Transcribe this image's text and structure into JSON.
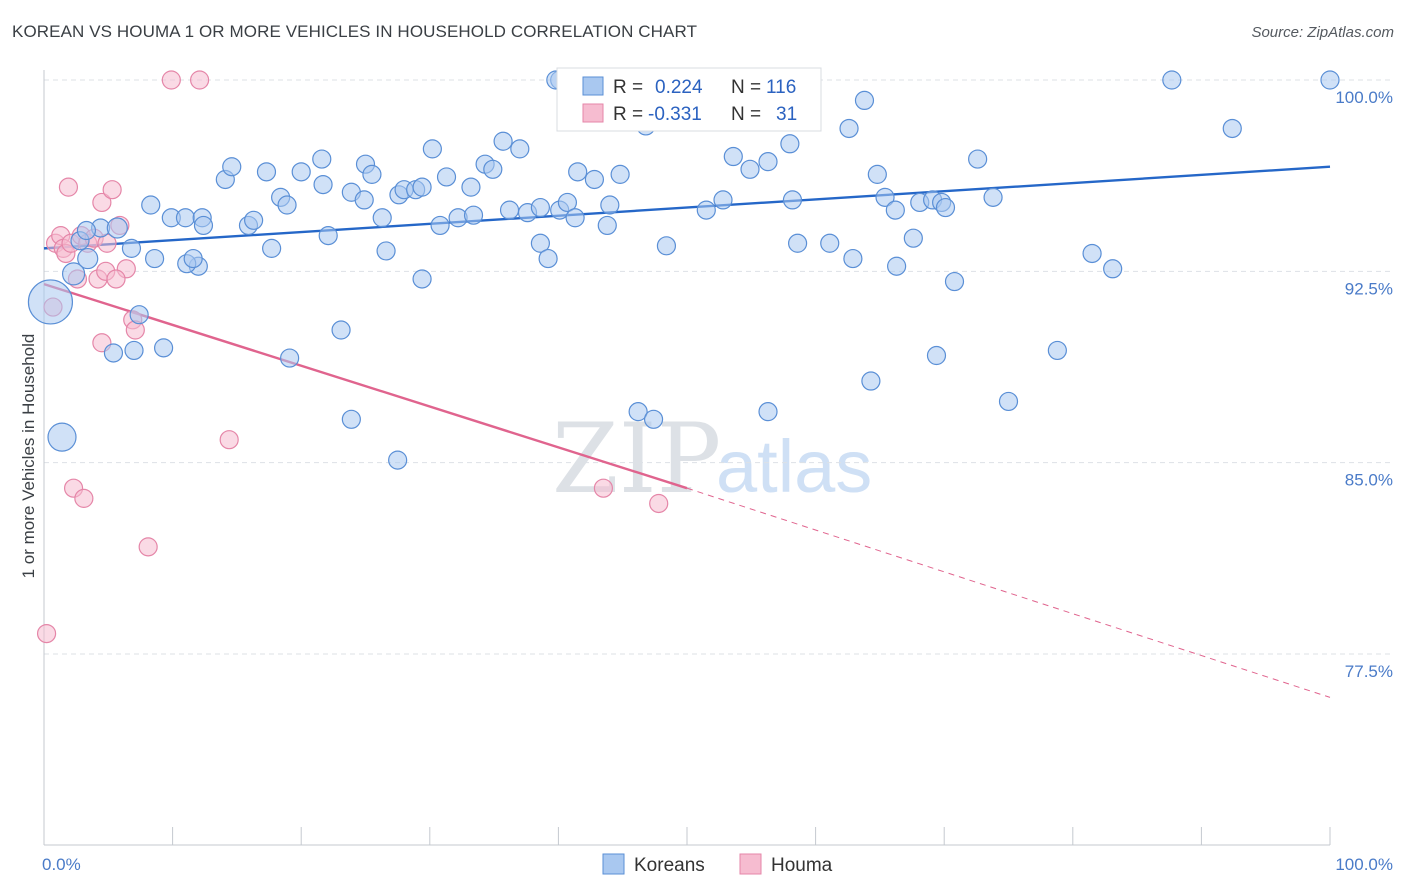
{
  "header": {
    "title": "KOREAN VS HOUMA 1 OR MORE VEHICLES IN HOUSEHOLD CORRELATION CHART",
    "source": "Source: ZipAtlas.com"
  },
  "watermark": {
    "zip": "ZIP",
    "atlas": "atlas"
  },
  "legend": {
    "rows": [
      {
        "r_label": "R =",
        "r_value": "0.224",
        "n_label": "N =",
        "n_value": "116"
      },
      {
        "r_label": "R =",
        "r_value": "-0.331",
        "n_label": "N =",
        "n_value": "31"
      }
    ]
  },
  "bottom_legend": [
    {
      "label": "Koreans"
    },
    {
      "label": "Houma"
    }
  ],
  "colors": {
    "koreans_fill": "#a9c8f0",
    "koreans_stroke": "#5a8fd6",
    "koreans_line": "#2567c8",
    "houma_fill": "#f6bcd0",
    "houma_stroke": "#e586a8",
    "houma_line": "#e0648e",
    "tick_label": "#4a7bc8",
    "grid": "#dde1e6"
  },
  "chart_data": {
    "type": "scatter",
    "title": "KOREAN VS HOUMA 1 OR MORE VEHICLES IN HOUSEHOLD CORRELATION CHART",
    "xlabel": "",
    "ylabel": "1 or more Vehicles in Household",
    "xlim": [
      0,
      100
    ],
    "ylim": [
      70.8,
      101.4
    ],
    "y_ticks": [
      {
        "value": 100.0,
        "label": "100.0%"
      },
      {
        "value": 92.5,
        "label": "92.5%"
      },
      {
        "value": 85.0,
        "label": "85.0%"
      },
      {
        "value": 77.5,
        "label": "77.5%"
      }
    ],
    "x_tick_labels": [
      {
        "value": 0,
        "label": "0.0%"
      },
      {
        "value": 100,
        "label": "100.0%"
      }
    ],
    "grid": true,
    "legend_position": "top-center",
    "series": [
      {
        "name": "Koreans",
        "r": 0.224,
        "n": 116,
        "trend": {
          "x": [
            0,
            100
          ],
          "y": [
            93.4,
            96.6
          ],
          "style": "solid"
        },
        "points": [
          [
            0.5,
            91.3,
            22
          ],
          [
            1.4,
            86.0,
            14
          ],
          [
            2.3,
            92.4,
            11
          ],
          [
            3.4,
            93.0,
            10
          ],
          [
            2.8,
            93.7,
            9
          ],
          [
            4.4,
            94.2,
            9
          ],
          [
            5.7,
            94.2,
            10
          ],
          [
            3.3,
            94.1,
            9
          ],
          [
            6.8,
            93.4,
            9
          ],
          [
            8.6,
            93.0,
            9
          ],
          [
            7.4,
            90.8,
            9
          ],
          [
            5.4,
            89.3,
            9
          ],
          [
            7.0,
            89.4,
            9
          ],
          [
            9.3,
            89.5,
            9
          ],
          [
            8.3,
            95.1,
            9
          ],
          [
            9.9,
            94.6,
            9
          ],
          [
            11.0,
            94.6,
            9
          ],
          [
            12.3,
            94.6,
            9
          ],
          [
            12.4,
            94.3,
            9
          ],
          [
            12.0,
            92.7,
            9
          ],
          [
            11.1,
            92.8,
            9
          ],
          [
            11.6,
            93.0,
            9
          ],
          [
            14.1,
            96.1,
            9
          ],
          [
            14.6,
            96.6,
            9
          ],
          [
            15.9,
            94.3,
            9
          ],
          [
            17.3,
            96.4,
            9
          ],
          [
            18.4,
            95.4,
            9
          ],
          [
            18.9,
            95.1,
            9
          ],
          [
            20.0,
            96.4,
            9
          ],
          [
            17.7,
            93.4,
            9
          ],
          [
            19.1,
            89.1,
            9
          ],
          [
            21.6,
            96.9,
            9
          ],
          [
            21.7,
            95.9,
            9
          ],
          [
            22.1,
            93.9,
            9
          ],
          [
            23.9,
            95.6,
            9
          ],
          [
            24.9,
            95.3,
            9
          ],
          [
            25.0,
            96.7,
            9
          ],
          [
            25.5,
            96.3,
            9
          ],
          [
            26.3,
            94.6,
            9
          ],
          [
            26.6,
            93.3,
            9
          ],
          [
            23.1,
            90.2,
            9
          ],
          [
            23.9,
            86.7,
            9
          ],
          [
            27.6,
            95.5,
            9
          ],
          [
            28.0,
            95.7,
            9
          ],
          [
            28.9,
            95.7,
            9
          ],
          [
            30.2,
            97.3,
            9
          ],
          [
            29.4,
            95.8,
            9
          ],
          [
            30.8,
            94.3,
            9
          ],
          [
            31.3,
            96.2,
            9
          ],
          [
            32.2,
            94.6,
            9
          ],
          [
            33.2,
            95.8,
            9
          ],
          [
            33.4,
            94.7,
            9
          ],
          [
            34.3,
            96.7,
            9
          ],
          [
            34.9,
            96.5,
            9
          ],
          [
            35.7,
            97.6,
            9
          ],
          [
            36.2,
            94.9,
            9
          ],
          [
            37.0,
            97.3,
            9
          ],
          [
            37.6,
            94.8,
            9
          ],
          [
            38.6,
            95.0,
            9
          ],
          [
            38.6,
            93.6,
            9
          ],
          [
            39.2,
            93.0,
            9
          ],
          [
            40.1,
            94.9,
            9
          ],
          [
            40.7,
            95.2,
            9
          ],
          [
            41.3,
            94.6,
            9
          ],
          [
            41.5,
            96.4,
            9
          ],
          [
            42.8,
            96.1,
            9
          ],
          [
            43.8,
            94.3,
            9
          ],
          [
            44.8,
            96.3,
            9
          ],
          [
            44.0,
            95.1,
            9
          ],
          [
            46.8,
            98.2,
            9
          ],
          [
            47.5,
            99.1,
            9
          ],
          [
            47.8,
            100.0,
            10
          ],
          [
            48.1,
            100.0,
            9
          ],
          [
            48.4,
            93.5,
            9
          ],
          [
            48.5,
            98.6,
            9
          ],
          [
            40.1,
            100.0,
            9
          ],
          [
            39.8,
            100.0,
            9
          ],
          [
            27.5,
            85.1,
            9
          ],
          [
            46.2,
            87.0,
            9
          ],
          [
            47.4,
            86.7,
            9
          ],
          [
            51.5,
            94.9,
            9
          ],
          [
            52.8,
            95.3,
            9
          ],
          [
            54.9,
            96.5,
            9
          ],
          [
            56.3,
            96.8,
            9
          ],
          [
            58.0,
            97.5,
            9
          ],
          [
            58.2,
            95.3,
            9
          ],
          [
            58.6,
            93.6,
            9
          ],
          [
            61.1,
            93.6,
            9
          ],
          [
            62.9,
            93.0,
            9
          ],
          [
            62.6,
            98.1,
            9
          ],
          [
            63.8,
            99.2,
            9
          ],
          [
            65.4,
            95.4,
            9
          ],
          [
            64.8,
            96.3,
            9
          ],
          [
            66.2,
            94.9,
            9
          ],
          [
            67.6,
            93.8,
            9
          ],
          [
            68.1,
            95.2,
            9
          ],
          [
            69.1,
            95.3,
            9
          ],
          [
            69.8,
            95.2,
            9
          ],
          [
            70.1,
            95.0,
            9
          ],
          [
            69.4,
            89.2,
            9
          ],
          [
            72.6,
            96.9,
            9
          ],
          [
            73.8,
            95.4,
            9
          ],
          [
            56.3,
            87.0,
            9
          ],
          [
            64.3,
            88.2,
            9
          ],
          [
            66.3,
            92.7,
            9
          ],
          [
            70.8,
            92.1,
            9
          ],
          [
            81.5,
            93.2,
            9
          ],
          [
            83.1,
            92.6,
            9
          ],
          [
            75.0,
            87.4,
            9
          ],
          [
            78.8,
            89.4,
            9
          ],
          [
            87.7,
            100.0,
            9
          ],
          [
            92.4,
            98.1,
            9
          ],
          [
            100.0,
            100.0,
            9
          ],
          [
            53.6,
            97.0,
            9
          ],
          [
            29.4,
            92.2,
            9
          ],
          [
            16.3,
            94.5,
            9
          ]
        ]
      },
      {
        "name": "Houma",
        "r": -0.331,
        "n": 31,
        "trend": {
          "x": [
            0,
            50
          ],
          "y": [
            92.0,
            84.0
          ],
          "style": "solid",
          "extension": {
            "x": [
              50,
              100
            ],
            "y": [
              84.0,
              75.8
            ],
            "style": "dashed"
          }
        },
        "points": [
          [
            0.2,
            78.3,
            9
          ],
          [
            0.7,
            91.1,
            9
          ],
          [
            0.9,
            93.6,
            9
          ],
          [
            1.3,
            93.9,
            9
          ],
          [
            1.5,
            93.4,
            9
          ],
          [
            1.7,
            93.2,
            9
          ],
          [
            2.1,
            93.6,
            9
          ],
          [
            2.6,
            92.2,
            9
          ],
          [
            2.9,
            93.9,
            9
          ],
          [
            3.4,
            93.6,
            9
          ],
          [
            3.9,
            93.8,
            9
          ],
          [
            4.5,
            95.2,
            9
          ],
          [
            4.9,
            93.6,
            9
          ],
          [
            5.3,
            95.7,
            9
          ],
          [
            5.9,
            94.3,
            9
          ],
          [
            6.4,
            92.6,
            9
          ],
          [
            4.2,
            92.2,
            9
          ],
          [
            4.8,
            92.5,
            9
          ],
          [
            5.6,
            92.2,
            9
          ],
          [
            6.9,
            90.6,
            9
          ],
          [
            4.5,
            89.7,
            9
          ],
          [
            7.1,
            90.2,
            9
          ],
          [
            1.9,
            95.8,
            9
          ],
          [
            2.3,
            84.0,
            9
          ],
          [
            3.1,
            83.6,
            9
          ],
          [
            8.1,
            81.7,
            9
          ],
          [
            14.4,
            85.9,
            9
          ],
          [
            9.9,
            100.0,
            9
          ],
          [
            12.1,
            100.0,
            9
          ],
          [
            43.5,
            84.0,
            9
          ],
          [
            47.8,
            83.4,
            9
          ]
        ]
      }
    ]
  }
}
